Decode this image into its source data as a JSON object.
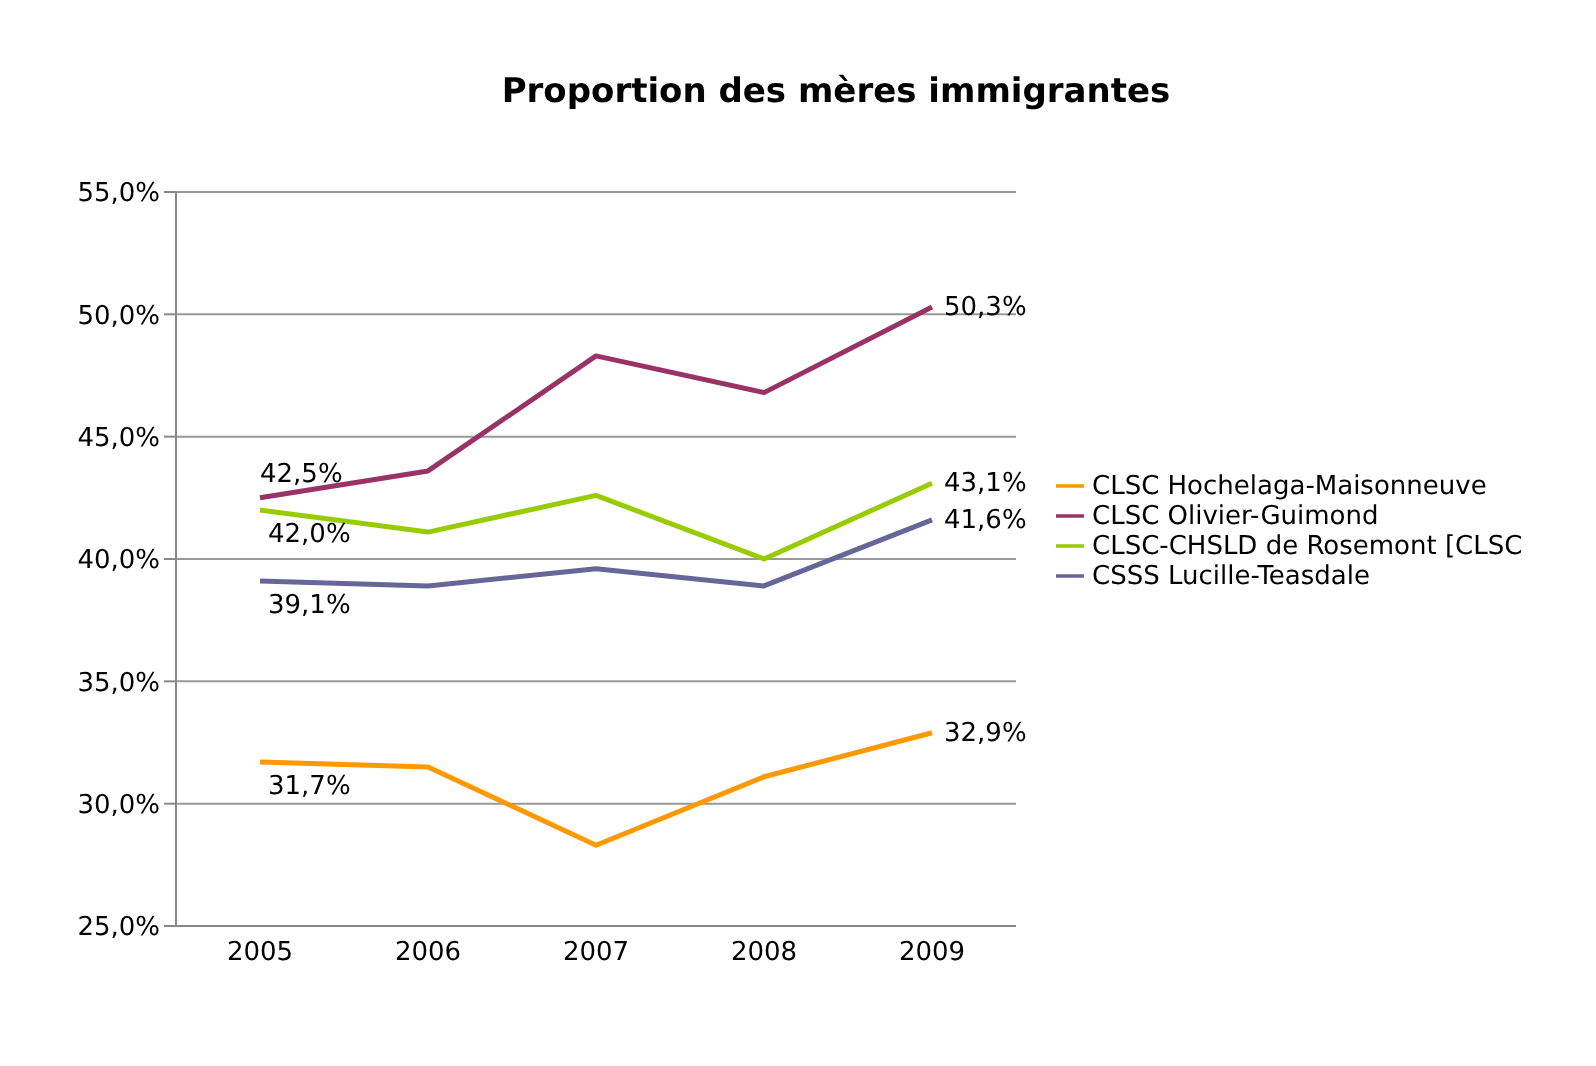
{
  "chart_data": {
    "type": "line",
    "title": "Proportion des mères immigrantes",
    "categories": [
      "2005",
      "2006",
      "2007",
      "2008",
      "2009"
    ],
    "series": [
      {
        "name": "CLSC Hochelaga-Maisonneuve",
        "color": "#ff9900",
        "values": [
          31.7,
          31.5,
          28.3,
          31.1,
          32.9
        ],
        "value_labels": [
          "31,7%",
          null,
          null,
          null,
          "32,9%"
        ]
      },
      {
        "name": "CLSC Olivier-Guimond",
        "color": "#993366",
        "values": [
          42.5,
          43.6,
          48.3,
          46.8,
          50.3
        ],
        "value_labels": [
          "42,5%",
          null,
          null,
          null,
          "50,3%"
        ]
      },
      {
        "name": "CLSC-CHSLD de Rosemont [CLSC",
        "color": "#99cc00",
        "values": [
          42.0,
          41.1,
          42.6,
          40.0,
          43.1
        ],
        "value_labels": [
          "42,0%",
          null,
          null,
          null,
          "43,1%"
        ]
      },
      {
        "name": "CSSS Lucille-Teasdale",
        "color": "#666699",
        "values": [
          39.1,
          38.9,
          39.6,
          38.9,
          41.6
        ],
        "value_labels": [
          "39,1%",
          null,
          null,
          null,
          "41,6%"
        ]
      }
    ],
    "ylim": [
      25,
      55
    ],
    "yticks": [
      {
        "value": 25,
        "label": "25,0%"
      },
      {
        "value": 30,
        "label": "30,0%"
      },
      {
        "value": 35,
        "label": "35,0%"
      },
      {
        "value": 40,
        "label": "40,0%"
      },
      {
        "value": 45,
        "label": "45,0%"
      },
      {
        "value": 50,
        "label": "50,0%"
      },
      {
        "value": 55,
        "label": "55,0%"
      }
    ],
    "grid": "y",
    "legend": "right",
    "marker": "none",
    "line_style": "solid"
  }
}
